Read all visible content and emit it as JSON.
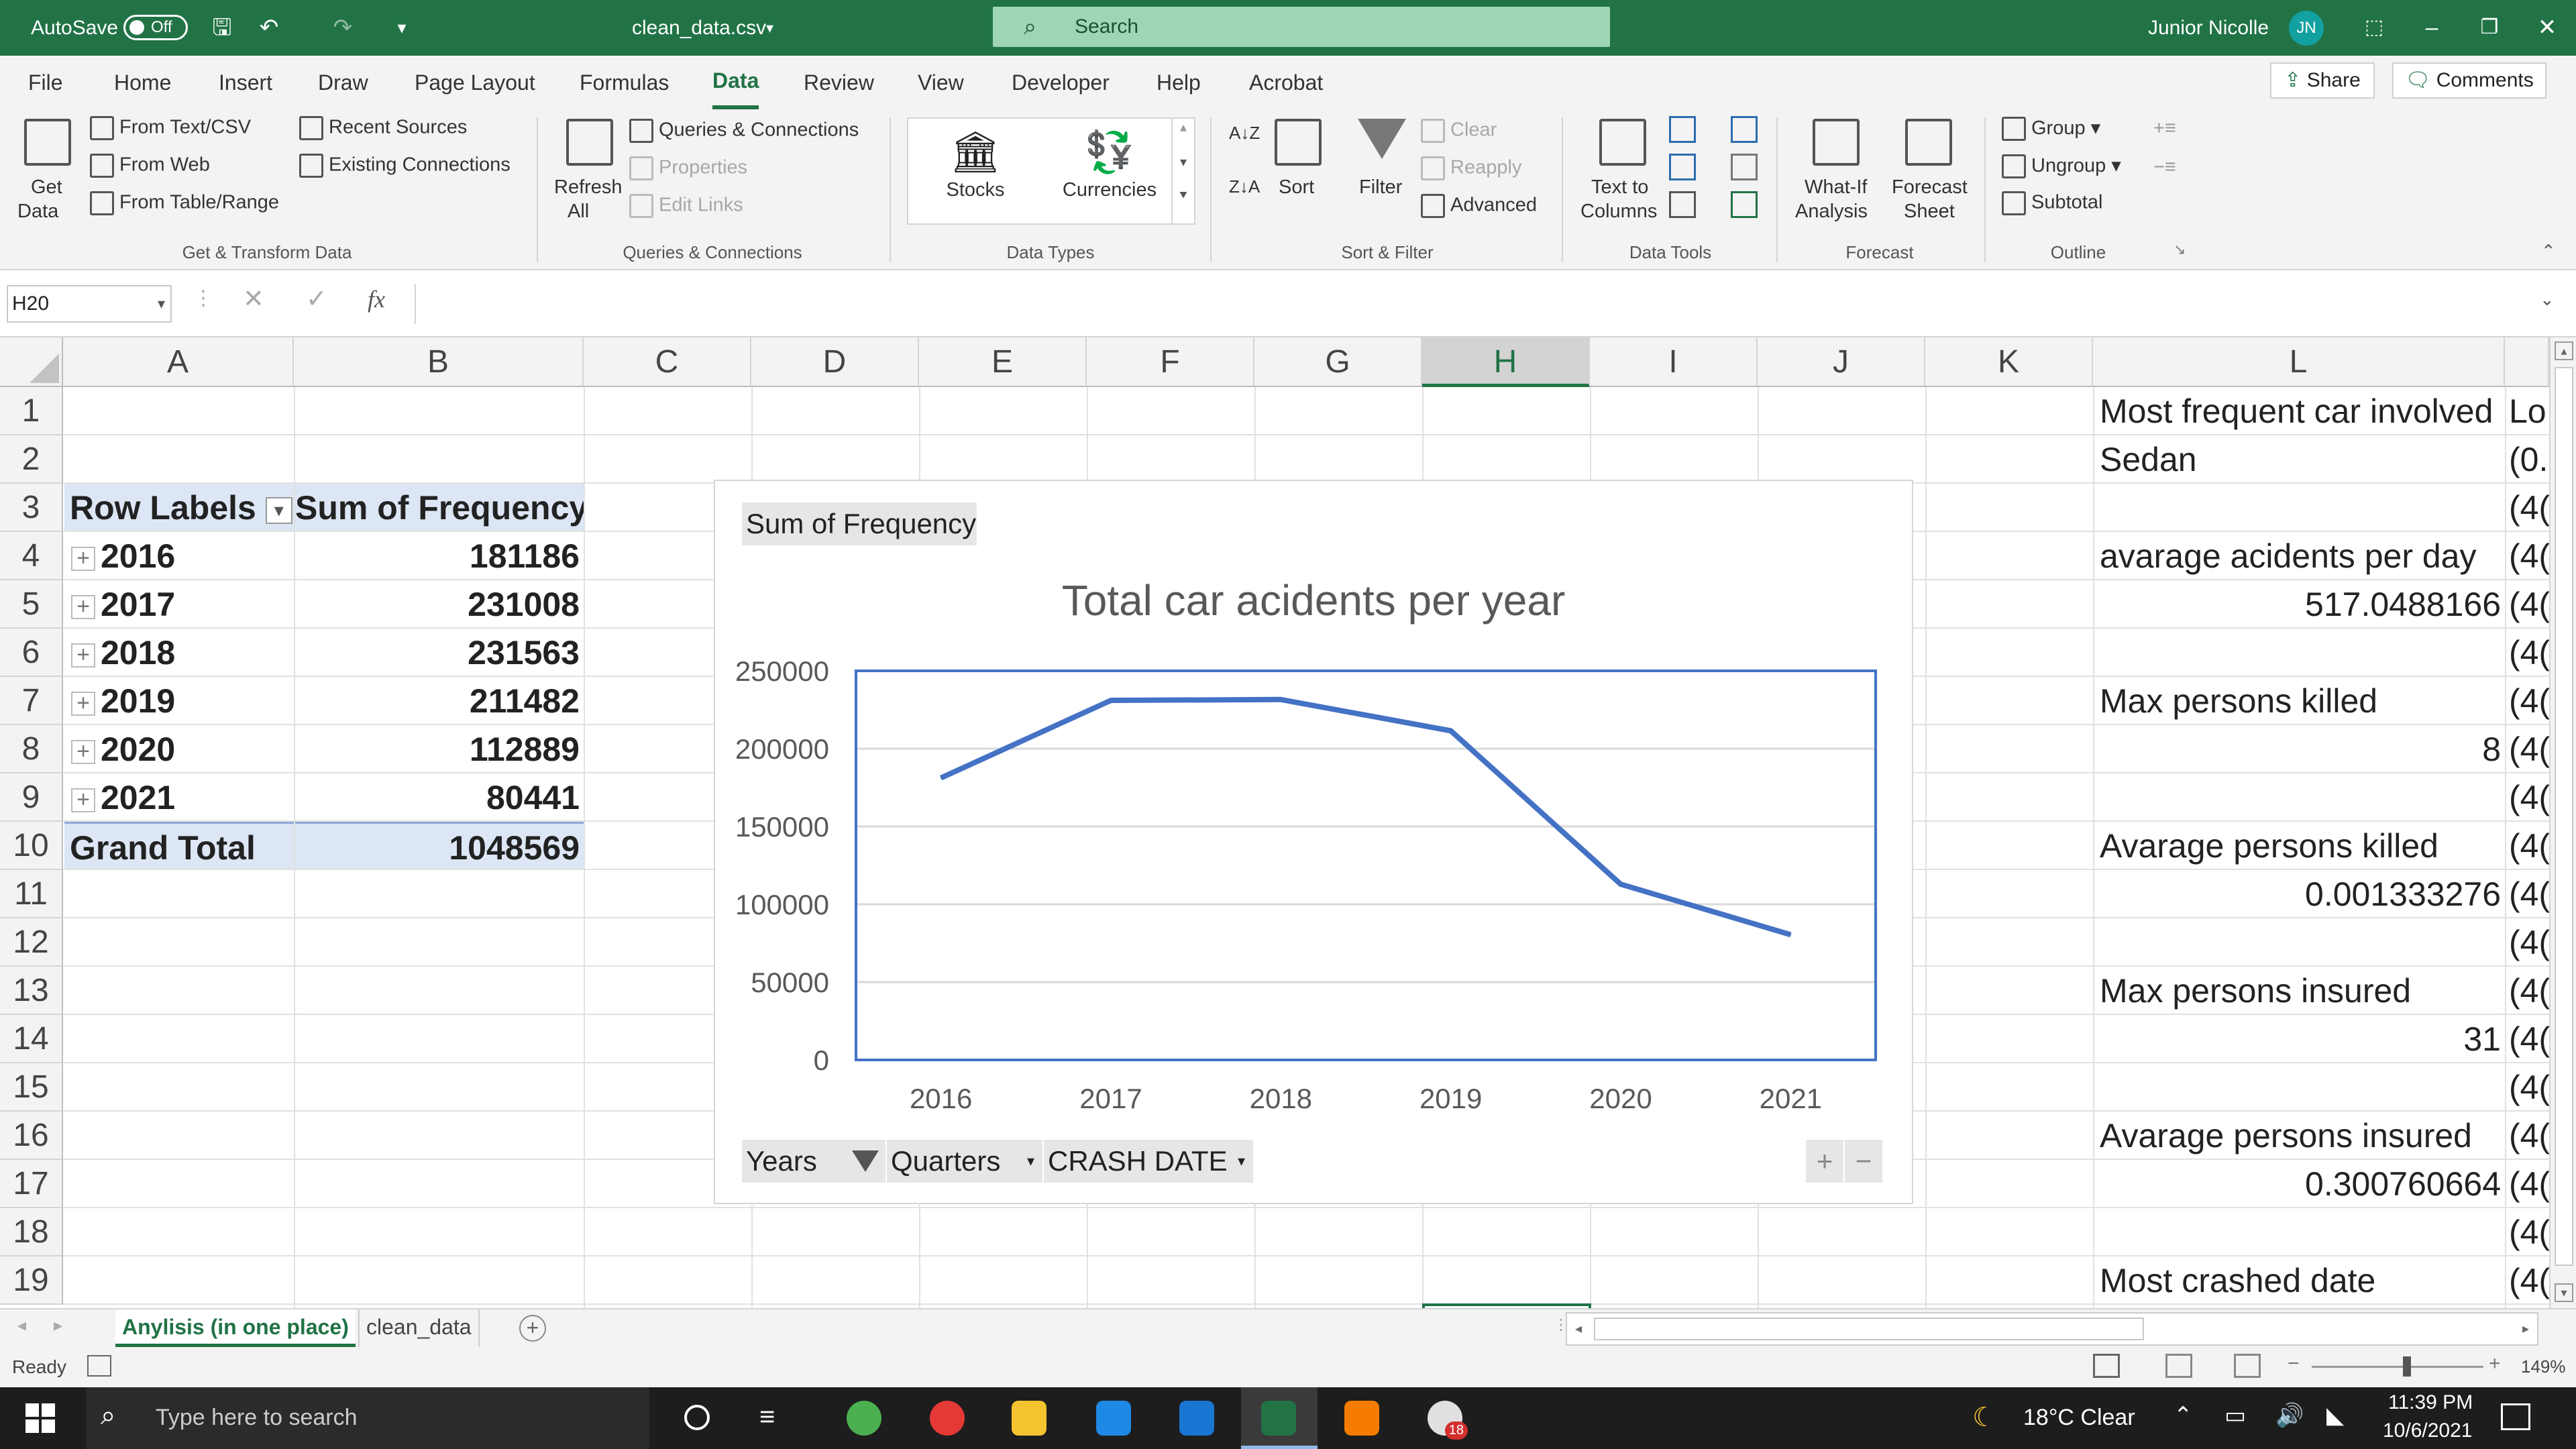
{
  "titlebar": {
    "autosave_label": "AutoSave",
    "autosave_state": "Off",
    "filename": "clean_data.csv",
    "search_placeholder": "Search",
    "user_name": "Junior Nicolle",
    "user_initials": "JN"
  },
  "menu": {
    "tabs": [
      "File",
      "Home",
      "Insert",
      "Draw",
      "Page Layout",
      "Formulas",
      "Data",
      "Review",
      "View",
      "Developer",
      "Help",
      "Acrobat"
    ],
    "active": "Data",
    "share": "Share",
    "comments": "Comments"
  },
  "ribbon": {
    "get_data": "Get",
    "get_data2": "Data",
    "from_text_csv": "From Text/CSV",
    "from_web": "From Web",
    "from_table_range": "From Table/Range",
    "recent_sources": "Recent Sources",
    "existing_connections": "Existing Connections",
    "group_get_transform": "Get & Transform Data",
    "refresh_all": "Refresh",
    "refresh_all2": "All",
    "queries_connections": "Queries & Connections",
    "properties": "Properties",
    "edit_links": "Edit Links",
    "group_queries": "Queries & Connections",
    "stocks": "Stocks",
    "currencies": "Currencies",
    "group_data_types": "Data Types",
    "sort": "Sort",
    "filter": "Filter",
    "clear": "Clear",
    "reapply": "Reapply",
    "advanced": "Advanced",
    "group_sort_filter": "Sort & Filter",
    "text_to_columns": "Text to",
    "text_to_columns2": "Columns",
    "group_data_tools": "Data Tools",
    "what_if": "What-If",
    "what_if2": "Analysis",
    "forecast_sheet": "Forecast",
    "forecast_sheet2": "Sheet",
    "group_forecast": "Forecast",
    "group_btn": "Group",
    "ungroup_btn": "Ungroup",
    "subtotal": "Subtotal",
    "group_outline": "Outline"
  },
  "formula_bar": {
    "name_box": "H20",
    "fx": "fx",
    "formula": ""
  },
  "grid": {
    "columns": [
      "A",
      "B",
      "C",
      "D",
      "E",
      "F",
      "G",
      "H",
      "I",
      "J",
      "K",
      "L"
    ],
    "selected_column": "H",
    "rows": [
      "1",
      "2",
      "3",
      "4",
      "5",
      "6",
      "7",
      "8",
      "9",
      "10",
      "11",
      "12",
      "13",
      "14",
      "15",
      "16",
      "17",
      "18",
      "19"
    ]
  },
  "pivot": {
    "header_row_labels": "Row Labels",
    "header_sum": "Sum of Frequency",
    "rows": [
      {
        "label": "2016",
        "value": "181186"
      },
      {
        "label": "2017",
        "value": "231008"
      },
      {
        "label": "2018",
        "value": "231563"
      },
      {
        "label": "2019",
        "value": "211482"
      },
      {
        "label": "2020",
        "value": "112889"
      },
      {
        "label": "2021",
        "value": "80441"
      }
    ],
    "grand_total_label": "Grand Total",
    "grand_total_value": "1048569"
  },
  "col_l": {
    "r1": "Most frequent car involved",
    "r2": "Sedan",
    "r4": "avarage acidents per day",
    "r5": "517.0488166",
    "r7": "Max persons killed",
    "r8": "8",
    "r10": "Avarage persons killed",
    "r11": "0.001333276",
    "r13": "Max persons insured",
    "r14": "31",
    "r16": "Avarage persons insured",
    "r17": "0.300760664",
    "r19": "Most crashed date"
  },
  "col_m": {
    "r1": "Lo",
    "r2": "(0.",
    "rest": "(4("
  },
  "chart_data": {
    "type": "line",
    "field_button": "Sum of Frequency",
    "title": "Total car acidents per year",
    "categories": [
      "2016",
      "2017",
      "2018",
      "2019",
      "2020",
      "2021"
    ],
    "values": [
      181186,
      231008,
      231563,
      211482,
      112889,
      80441
    ],
    "ylim": [
      0,
      250000
    ],
    "yticks": [
      "250000",
      "200000",
      "150000",
      "100000",
      "50000",
      "0"
    ],
    "grid": true,
    "line_color": "#4472c4",
    "axis_buttons": [
      "Years",
      "Quarters",
      "CRASH DATE"
    ]
  },
  "sheets": {
    "tabs": [
      "Anylisis (in one place)",
      "clean_data"
    ],
    "active": "Anylisis (in one place)"
  },
  "status": {
    "ready": "Ready",
    "zoom": "149%"
  },
  "taskbar": {
    "search_placeholder": "Type here to search",
    "weather": "18°C  Clear",
    "time": "11:39 PM",
    "date": "10/6/2021",
    "notification_badge": "18"
  },
  "colors": {
    "excel_green": "#217346",
    "pivot_header": "#dce6f4",
    "chart_line": "#4472c4"
  }
}
